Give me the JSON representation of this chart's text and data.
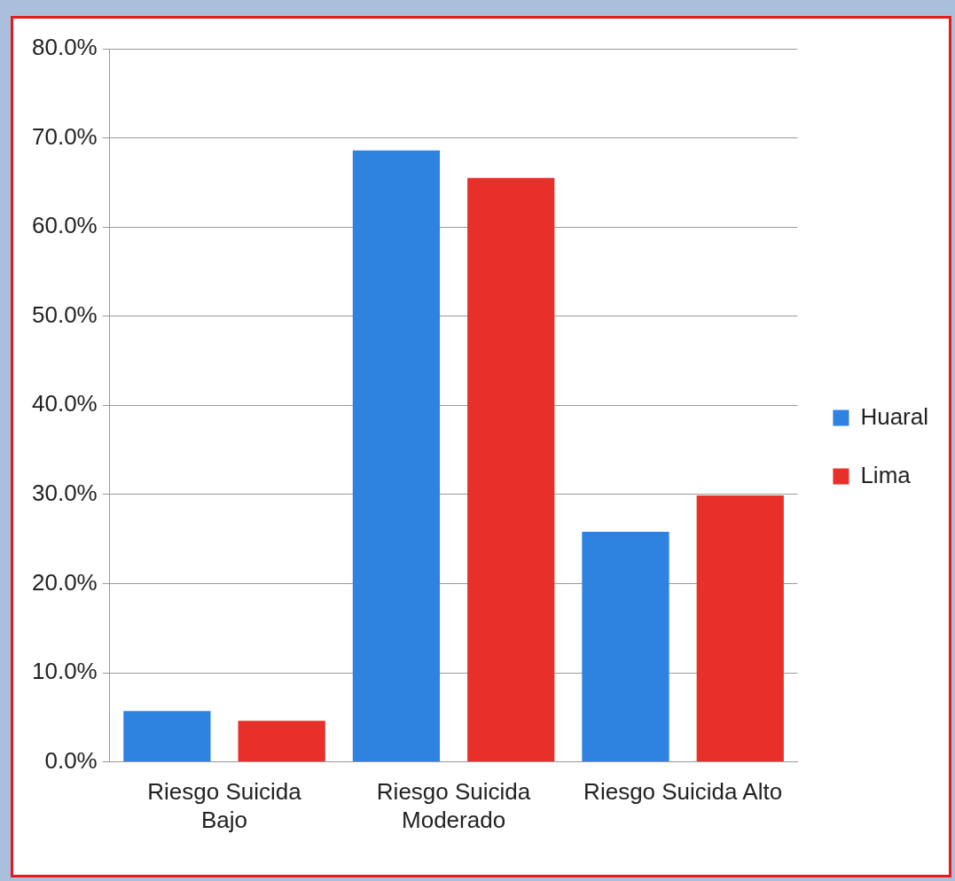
{
  "chart_data": {
    "type": "bar",
    "categories": [
      "Riesgo Suicida Bajo",
      "Riesgo Suicida Moderado",
      "Riesgo Suicida Alto"
    ],
    "series": [
      {
        "name": "Huaral",
        "color": "#2e83e0",
        "values": [
          5.7,
          68.6,
          25.8
        ]
      },
      {
        "name": "Lima",
        "color": "#e8302a",
        "values": [
          4.6,
          65.5,
          29.9
        ]
      }
    ],
    "ylim": [
      0,
      80
    ],
    "yticks": [
      {
        "value": 0,
        "label": "0.0%"
      },
      {
        "value": 10,
        "label": "10.0%"
      },
      {
        "value": 20,
        "label": "20.0%"
      },
      {
        "value": 30,
        "label": "30.0%"
      },
      {
        "value": 40,
        "label": "40.0%"
      },
      {
        "value": 50,
        "label": "50.0%"
      },
      {
        "value": 60,
        "label": "60.0%"
      },
      {
        "value": 70,
        "label": "70.0%"
      },
      {
        "value": 80,
        "label": "80.0%"
      }
    ],
    "grid": "y",
    "legend": "right"
  }
}
